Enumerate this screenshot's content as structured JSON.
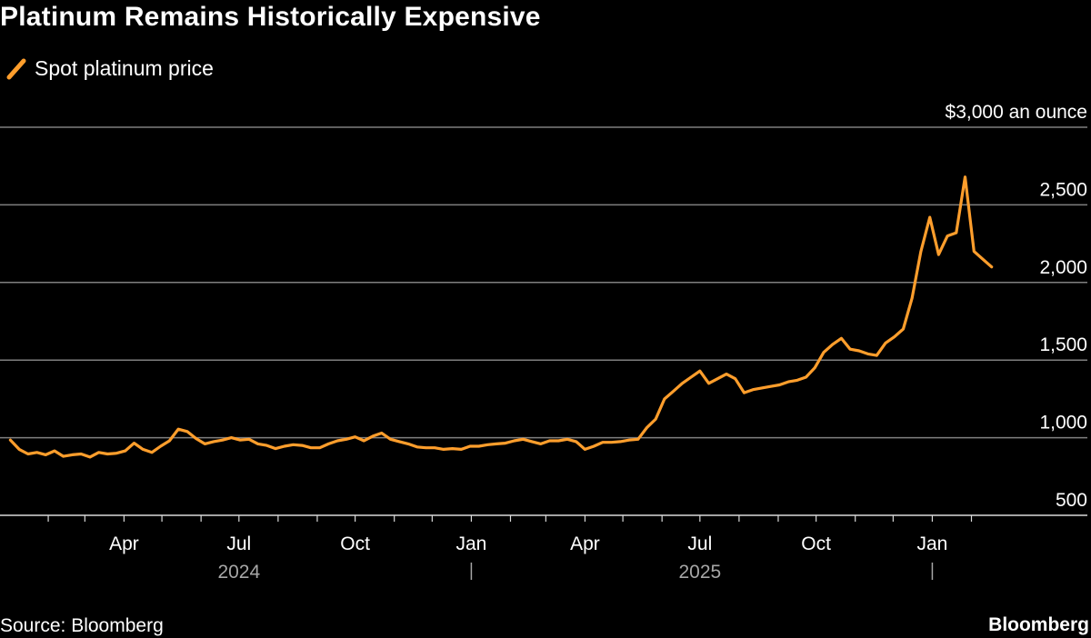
{
  "title": "Platinum Remains Historically Expensive",
  "legend": {
    "label": "Spot platinum price"
  },
  "source": "Source: Bloomberg",
  "brand": "Bloomberg",
  "colors": {
    "background": "#000000",
    "line": "#ff9e2c",
    "grid": "#7f7f7f",
    "year_tick": "#a6a6a6"
  },
  "chart_data": {
    "type": "line",
    "title": "Platinum Remains Historically Expensive",
    "ylabel": "$3,000 an ounce",
    "ylim": [
      500,
      3000
    ],
    "y_ticks": [
      500,
      1000,
      1500,
      2000,
      2500,
      3000
    ],
    "y_tick_labels": [
      "500",
      "1,000",
      "1,500",
      "2,000",
      "2,500",
      "$3,000 an ounce"
    ],
    "x_ticks": [
      {
        "date": "2024-04-01",
        "label": "Apr"
      },
      {
        "date": "2024-07-01",
        "label": "Jul"
      },
      {
        "date": "2024-10-01",
        "label": "Oct"
      },
      {
        "date": "2025-01-01",
        "label": "Jan"
      },
      {
        "date": "2025-04-01",
        "label": "Apr"
      },
      {
        "date": "2025-07-01",
        "label": "Jul"
      },
      {
        "date": "2025-10-01",
        "label": "Oct"
      },
      {
        "date": "2026-01-01",
        "label": "Jan"
      }
    ],
    "x_year_labels": [
      {
        "date": "2024-07-01",
        "label": "2024"
      },
      {
        "date": "2025-07-01",
        "label": "2025"
      }
    ],
    "x_year_separators": [
      "2025-01-01",
      "2026-01-01"
    ],
    "grid": true,
    "legend_position": "top-left",
    "series": [
      {
        "name": "Spot platinum price",
        "color": "#ff9e2c",
        "x": [
          "2024-01-02",
          "2024-01-09",
          "2024-01-16",
          "2024-01-23",
          "2024-01-30",
          "2024-02-06",
          "2024-02-13",
          "2024-02-20",
          "2024-02-27",
          "2024-03-05",
          "2024-03-12",
          "2024-03-19",
          "2024-03-26",
          "2024-04-02",
          "2024-04-09",
          "2024-04-16",
          "2024-04-23",
          "2024-04-30",
          "2024-05-07",
          "2024-05-14",
          "2024-05-21",
          "2024-05-28",
          "2024-06-04",
          "2024-06-11",
          "2024-06-18",
          "2024-06-25",
          "2024-07-02",
          "2024-07-09",
          "2024-07-16",
          "2024-07-23",
          "2024-07-30",
          "2024-08-06",
          "2024-08-13",
          "2024-08-20",
          "2024-08-27",
          "2024-09-03",
          "2024-09-10",
          "2024-09-17",
          "2024-09-24",
          "2024-10-01",
          "2024-10-08",
          "2024-10-15",
          "2024-10-22",
          "2024-10-29",
          "2024-11-05",
          "2024-11-12",
          "2024-11-19",
          "2024-11-26",
          "2024-12-03",
          "2024-12-10",
          "2024-12-17",
          "2024-12-24",
          "2024-12-31",
          "2025-01-07",
          "2025-01-14",
          "2025-01-21",
          "2025-01-28",
          "2025-02-04",
          "2025-02-11",
          "2025-02-18",
          "2025-02-25",
          "2025-03-04",
          "2025-03-11",
          "2025-03-18",
          "2025-03-25",
          "2025-04-01",
          "2025-04-08",
          "2025-04-15",
          "2025-04-22",
          "2025-04-29",
          "2025-05-06",
          "2025-05-13",
          "2025-05-20",
          "2025-05-27",
          "2025-06-03",
          "2025-06-10",
          "2025-06-17",
          "2025-06-24",
          "2025-07-01",
          "2025-07-08",
          "2025-07-15",
          "2025-07-22",
          "2025-07-29",
          "2025-08-05",
          "2025-08-12",
          "2025-08-19",
          "2025-08-26",
          "2025-09-02",
          "2025-09-09",
          "2025-09-16",
          "2025-09-23",
          "2025-09-30",
          "2025-10-07",
          "2025-10-14",
          "2025-10-21",
          "2025-10-28",
          "2025-11-04",
          "2025-11-11",
          "2025-11-18",
          "2025-11-25",
          "2025-12-02",
          "2025-12-09",
          "2025-12-16",
          "2025-12-23",
          "2025-12-30",
          "2026-01-06",
          "2026-01-13",
          "2026-01-20",
          "2026-01-27",
          "2026-02-03",
          "2026-02-10",
          "2026-02-17"
        ],
        "y": [
          985,
          925,
          895,
          905,
          890,
          915,
          880,
          890,
          895,
          875,
          905,
          895,
          900,
          915,
          965,
          925,
          905,
          945,
          980,
          1055,
          1040,
          995,
          960,
          975,
          985,
          1000,
          985,
          990,
          960,
          950,
          930,
          945,
          955,
          950,
          935,
          935,
          960,
          980,
          990,
          1005,
          980,
          1010,
          1030,
          990,
          975,
          960,
          940,
          935,
          935,
          925,
          930,
          925,
          945,
          945,
          955,
          960,
          965,
          980,
          990,
          975,
          960,
          980,
          980,
          990,
          975,
          925,
          945,
          970,
          970,
          975,
          985,
          990,
          1065,
          1120,
          1250,
          1300,
          1350,
          1390,
          1430,
          1350,
          1380,
          1410,
          1380,
          1290,
          1310,
          1320,
          1330,
          1340,
          1360,
          1370,
          1390,
          1450,
          1550,
          1600,
          1640,
          1570,
          1560,
          1540,
          1530,
          1610,
          1650,
          1700,
          1900,
          2200,
          2420,
          2180,
          2300,
          2320,
          2680,
          2200,
          2150,
          2100
        ]
      }
    ]
  }
}
